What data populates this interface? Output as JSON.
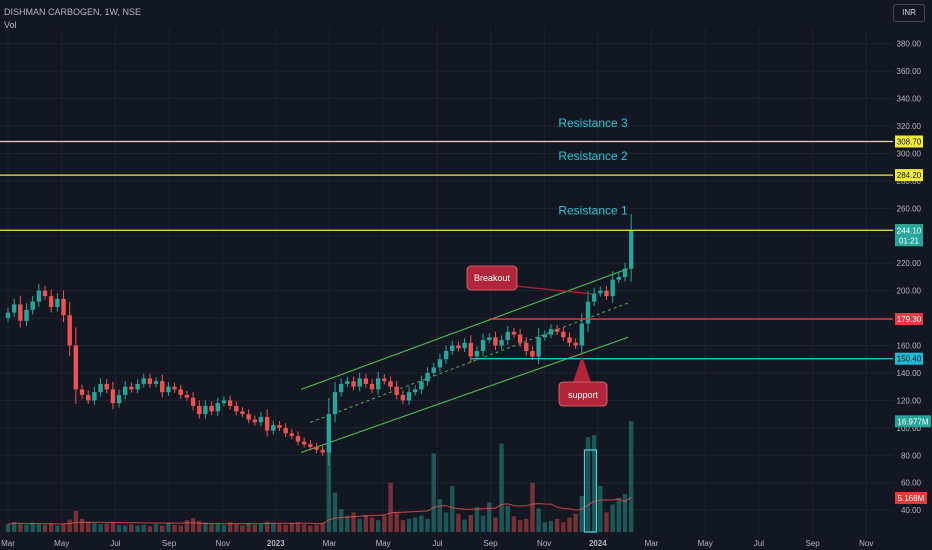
{
  "header": {
    "symbol": "DISHMAN CARBOGEN, 1W, NSE",
    "indicator": "Vol",
    "currency": "INR"
  },
  "colors": {
    "bg": "#131722",
    "grid": "#1f2330",
    "up": "#26a69a",
    "down": "#ef5350",
    "level_yellow": "#f2e93b",
    "level_red": "#f23645",
    "level_cyan": "#1fbad6",
    "channel": "#4caf50",
    "callout": "#b2253a",
    "label_cyan": "#26c6da"
  },
  "chart_data": {
    "type": "candlestick",
    "timeframe": "1W",
    "ylim": [
      30,
      395
    ],
    "y_ticks": [
      40,
      60,
      80,
      100,
      120,
      140,
      160,
      180,
      200,
      220,
      240,
      260,
      280,
      300,
      320,
      340,
      360,
      380
    ],
    "x_ticks": [
      "Mar",
      "May",
      "Jul",
      "Sep",
      "Nov",
      "2023",
      "Mar",
      "May",
      "Jul",
      "Sep",
      "Nov",
      "2024",
      "Mar",
      "May",
      "Jul",
      "Sep",
      "Nov"
    ],
    "x_tick_weeks": [
      0,
      8.7,
      17.4,
      26.1,
      34.8,
      43.4,
      52.1,
      60.8,
      69.6,
      78.2,
      86.9,
      95.6,
      104.3,
      113,
      121.7,
      130.4,
      139.1
    ],
    "closes": [
      184,
      190,
      178,
      186,
      192,
      200,
      196,
      188,
      194,
      182,
      160,
      128,
      124,
      120,
      126,
      132,
      128,
      118,
      124,
      130,
      128,
      132,
      136,
      132,
      134,
      126,
      130,
      128,
      124,
      122,
      116,
      110,
      116,
      112,
      118,
      120,
      116,
      112,
      110,
      106,
      104,
      108,
      98,
      102,
      100,
      96,
      94,
      90,
      88,
      86,
      84,
      82,
      110,
      126,
      132,
      134,
      130,
      136,
      132,
      128,
      136,
      134,
      130,
      124,
      120,
      126,
      128,
      134,
      140,
      144,
      150,
      156,
      160,
      158,
      162,
      152,
      156,
      164,
      166,
      160,
      164,
      170,
      168,
      162,
      156,
      152,
      166,
      168,
      172,
      170,
      166,
      162,
      160,
      176,
      192,
      198,
      200,
      196,
      208,
      210,
      216,
      244
    ],
    "volumes": [
      1.2,
      1.5,
      1.3,
      1.1,
      1.4,
      1.2,
      1.1,
      1.3,
      1.0,
      1.2,
      1.9,
      3.2,
      2.0,
      1.6,
      1.4,
      1.2,
      1.3,
      1.5,
      1.1,
      1.0,
      1.2,
      1.0,
      1.1,
      0.9,
      1.2,
      1.0,
      1.3,
      1.1,
      1.0,
      1.8,
      2.1,
      1.7,
      1.5,
      1.3,
      1.2,
      1.1,
      1.5,
      1.2,
      1.0,
      1.3,
      1.1,
      1.2,
      1.6,
      1.4,
      1.2,
      1.1,
      1.3,
      1.5,
      1.2,
      1.0,
      1.1,
      1.4,
      13.5,
      6.0,
      3.5,
      2.5,
      3.0,
      2.0,
      2.6,
      2.2,
      1.8,
      2.5,
      7.5,
      3.0,
      1.8,
      2.0,
      2.2,
      2.5,
      2.0,
      12.0,
      5.0,
      3.0,
      7.0,
      2.8,
      1.9,
      2.6,
      3.8,
      2.5,
      4.5,
      2.2,
      13.5,
      4.0,
      2.4,
      1.8,
      2.0,
      7.5,
      3.6,
      1.5,
      1.7,
      2.0,
      1.5,
      2.2,
      2.8,
      5.5,
      14.5,
      14.8,
      7.0,
      3.0,
      4.2,
      5.2,
      5.8,
      16.9
    ],
    "volume_ma_visible": true,
    "last_price_label": "244.10",
    "countdown_label": "01:21",
    "horizontal_levels": [
      {
        "price": 308.7,
        "label": "308.70",
        "color": "#f2e93b",
        "text_color": "#131722"
      },
      {
        "price": 284.2,
        "label": "284.20",
        "color": "#f2e93b",
        "text_color": "#131722"
      },
      {
        "price": 244.0,
        "label": "244.00",
        "color": "#f2e93b",
        "text_color": "#131722"
      },
      {
        "price": 179.3,
        "label": "179.30",
        "color": "#f23645",
        "text_color": "#ffffff"
      },
      {
        "price": 150.4,
        "label": "150.40",
        "color": "#1fbad6",
        "text_color": "#131722"
      }
    ],
    "volume_labels": [
      "16.977M",
      "5.168M"
    ],
    "annotations": [
      "Resistance 3",
      "Resistance 2",
      "Resistance 1",
      "Breakout",
      "support"
    ]
  }
}
